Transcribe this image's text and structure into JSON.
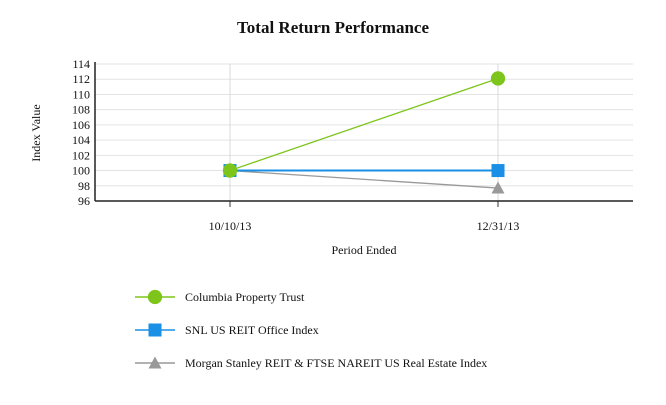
{
  "chart_data": {
    "type": "line",
    "title": "Total Return Performance",
    "xlabel": "Period Ended",
    "ylabel": "Index Value",
    "categories": [
      "10/10/13",
      "12/31/13"
    ],
    "ylim": [
      96,
      114
    ],
    "yticks": [
      96,
      98,
      100,
      102,
      104,
      106,
      108,
      110,
      112,
      114
    ],
    "grid": true,
    "legend_position": "bottom",
    "series": [
      {
        "name": "Columbia Property Trust",
        "values": [
          100,
          112.1
        ],
        "color": "#7dc51a",
        "marker": "circle"
      },
      {
        "name": "SNL US REIT Office Index",
        "values": [
          100,
          100
        ],
        "color": "#1a8fe6",
        "marker": "square"
      },
      {
        "name": "Morgan Stanley REIT & FTSE NAREIT US Real Estate Index",
        "values": [
          100,
          97.7
        ],
        "color": "#999999",
        "marker": "triangle"
      }
    ]
  }
}
